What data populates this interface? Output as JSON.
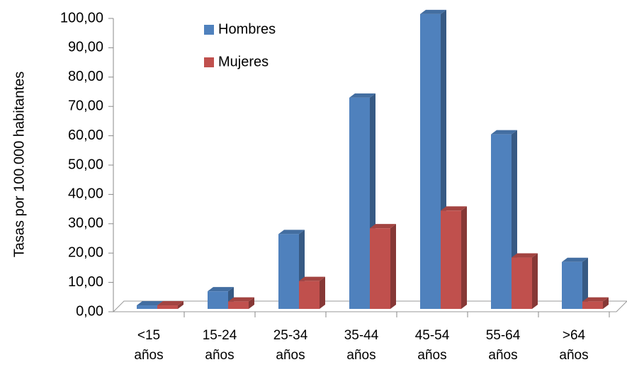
{
  "chart_data": {
    "type": "bar3d",
    "y_label": "Tasas por 100.000 habitantes",
    "categories": [
      "<15 años",
      "15-24 años",
      "25-34 años",
      "35-44 años",
      "45-54 años",
      "55-64 años",
      ">64 años"
    ],
    "series": [
      {
        "name": "Hombres",
        "color": "#4f81bd",
        "values": [
          1.2,
          6,
          25.5,
          72,
          100.5,
          59.5,
          16
        ]
      },
      {
        "name": "Mujeres",
        "color": "#c0504d",
        "values": [
          1.2,
          2.5,
          9.5,
          27.5,
          33.5,
          17.5,
          2.5
        ]
      }
    ],
    "ylim": [
      0,
      100
    ],
    "yticks": [
      {
        "value": 0,
        "label": "0,00"
      },
      {
        "value": 10,
        "label": "10,00"
      },
      {
        "value": 20,
        "label": "20,00"
      },
      {
        "value": 30,
        "label": "30,00"
      },
      {
        "value": 40,
        "label": "40,00"
      },
      {
        "value": 50,
        "label": "50,00"
      },
      {
        "value": 60,
        "label": "60,00"
      },
      {
        "value": 70,
        "label": "70,00"
      },
      {
        "value": 80,
        "label": "80,00"
      },
      {
        "value": 90,
        "label": "90,00"
      },
      {
        "value": 100,
        "label": "100,00"
      }
    ],
    "grid": false
  }
}
